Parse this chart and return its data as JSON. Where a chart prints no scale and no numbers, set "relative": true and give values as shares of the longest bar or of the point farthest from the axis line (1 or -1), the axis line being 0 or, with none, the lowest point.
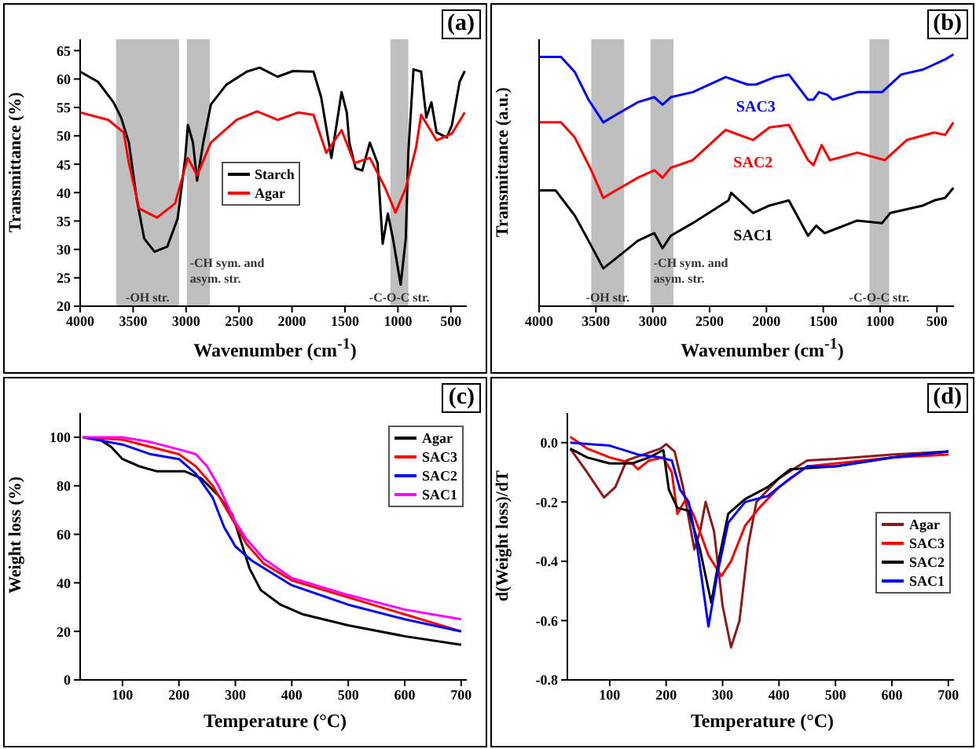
{
  "chart_data": [
    {
      "type": "line",
      "title": "(a)",
      "xlabel": "Wavenumber (cm$^{-1}$)",
      "ylabel": "Transmittance (%)",
      "xlim": [
        4000,
        350
      ],
      "xticks": [
        4000,
        3500,
        3000,
        2500,
        2000,
        1500,
        1000,
        500
      ],
      "ylim": [
        20,
        67
      ],
      "yticks": [
        20,
        25,
        30,
        35,
        40,
        45,
        50,
        55,
        60,
        65
      ],
      "legend": "center",
      "bands": [
        {
          "axis": "x",
          "from": 3661,
          "to": 3066,
          "label": "-OH str.",
          "color": "#bfbfbf"
        },
        {
          "axis": "x",
          "from": 2993,
          "to": 2775,
          "label": "-CH sym. and asym. str.",
          "color": "#bfbfbf"
        },
        {
          "axis": "x",
          "from": 1071,
          "to": 902,
          "label": "-C-O-C str.",
          "color": "#bfbfbf"
        }
      ],
      "series": [
        {
          "name": "Starch",
          "color": "#000000",
          "x": [
            4000,
            3831,
            3685,
            3613,
            3540,
            3467,
            3395,
            3298,
            3177,
            3080,
            3008,
            2983,
            2935,
            2896,
            2838,
            2766,
            2620,
            2427,
            2306,
            2136,
            1991,
            1797,
            1725,
            1628,
            1532,
            1483,
            1459,
            1400,
            1337,
            1265,
            1192,
            1144,
            1095,
            1047,
            974,
            926,
            902,
            853,
            781,
            732,
            684,
            635,
            539,
            490,
            418,
            369
          ],
          "values": [
            61.3,
            59.5,
            55.9,
            53.2,
            48.8,
            39,
            31.9,
            29.6,
            30.5,
            35.4,
            46.1,
            51.9,
            48.8,
            42.1,
            48.8,
            55.5,
            59,
            61.3,
            62,
            60.4,
            61.4,
            61.3,
            56.8,
            46.1,
            57.7,
            54.1,
            48.8,
            44.3,
            43.9,
            48.8,
            45.2,
            31,
            36.3,
            31.9,
            23.8,
            31.9,
            47,
            61.7,
            61.3,
            53.2,
            55.9,
            50.6,
            49.7,
            51.9,
            59.5,
            61.4
          ]
        },
        {
          "name": "Agar",
          "color": "#ff0000",
          "x": [
            4000,
            3734,
            3589,
            3540,
            3443,
            3274,
            3104,
            2983,
            2896,
            2766,
            2523,
            2330,
            2136,
            1943,
            1797,
            1676,
            1532,
            1410,
            1265,
            1120,
            1023,
            926,
            829,
            781,
            635,
            490,
            369
          ],
          "values": [
            54.1,
            52.8,
            50.6,
            45.2,
            37.2,
            35.6,
            38.1,
            46.1,
            43,
            48.8,
            52.8,
            54.3,
            52.8,
            54.1,
            53.7,
            47,
            51,
            45.2,
            46.1,
            40.8,
            36.5,
            40.8,
            47.9,
            53.7,
            49.2,
            50.4,
            54.1
          ]
        }
      ]
    },
    {
      "type": "line",
      "title": "(b)",
      "xlabel": "Wavenumber (cm$^{-1}$)",
      "ylabel": "Transmittance (a.u.)",
      "relative": true,
      "xlim": [
        4000,
        350
      ],
      "xticks": [
        4000,
        3500,
        3000,
        2500,
        2000,
        1500,
        1000,
        500
      ],
      "legend": false,
      "bands": [
        {
          "axis": "x",
          "from": 3541,
          "to": 3252,
          "label": "-OH str.",
          "color": "#bfbfbf"
        },
        {
          "axis": "x",
          "from": 3020,
          "to": 2817,
          "label": "-CH sym. and asym. str.",
          "color": "#bfbfbf"
        },
        {
          "axis": "x",
          "from": 1094,
          "to": 920,
          "label": "-C-O-C str.",
          "color": "#bfbfbf"
        }
      ],
      "series": [
        {
          "name": "SAC3",
          "color": "#0000ff",
          "x": [
            4000,
            3807,
            3686,
            3565,
            3435,
            3324,
            3131,
            2986,
            2914,
            2841,
            2648,
            2358,
            2165,
            2093,
            1924,
            1803,
            1634,
            1586,
            1538,
            1465,
            1417,
            1200,
            983,
            814,
            621,
            428,
            355
          ],
          "values": [
            0.99,
            0.99,
            0.93,
            0.82,
            0.73,
            0.76,
            0.81,
            0.83,
            0.8,
            0.83,
            0.85,
            0.91,
            0.88,
            0.88,
            0.91,
            0.92,
            0.82,
            0.82,
            0.85,
            0.84,
            0.82,
            0.85,
            0.85,
            0.92,
            0.94,
            0.98,
            1.0
          ]
        },
        {
          "name": "SAC2",
          "color": "#ff0000",
          "x": [
            4000,
            3807,
            3686,
            3541,
            3435,
            3324,
            3131,
            2986,
            2914,
            2841,
            2648,
            2358,
            2117,
            1972,
            1803,
            1634,
            1586,
            1514,
            1441,
            1200,
            958,
            765,
            524,
            428,
            355
          ],
          "values": [
            0.73,
            0.73,
            0.67,
            0.54,
            0.43,
            0.46,
            0.51,
            0.54,
            0.51,
            0.55,
            0.58,
            0.7,
            0.66,
            0.71,
            0.72,
            0.58,
            0.56,
            0.64,
            0.58,
            0.61,
            0.58,
            0.66,
            0.69,
            0.68,
            0.73
          ]
        },
        {
          "name": "SAC1",
          "color": "#000000",
          "x": [
            4000,
            3855,
            3686,
            3565,
            3435,
            3324,
            3131,
            2986,
            2914,
            2841,
            2648,
            2334,
            2310,
            2117,
            1972,
            1803,
            1634,
            1562,
            1489,
            1200,
            983,
            910,
            621,
            524,
            428,
            355
          ],
          "values": [
            0.46,
            0.46,
            0.36,
            0.26,
            0.15,
            0.19,
            0.26,
            0.29,
            0.23,
            0.28,
            0.33,
            0.42,
            0.45,
            0.37,
            0.4,
            0.42,
            0.28,
            0.32,
            0.29,
            0.34,
            0.33,
            0.37,
            0.4,
            0.42,
            0.43,
            0.47
          ]
        }
      ]
    },
    {
      "type": "line",
      "title": "(c)",
      "xlabel": "Temperature (°C)",
      "ylabel": "Weight loss (%)",
      "xlim": [
        25,
        710
      ],
      "xticks": [
        100,
        200,
        300,
        400,
        500,
        600,
        700
      ],
      "ylim": [
        0,
        110
      ],
      "yticks": [
        0,
        20,
        40,
        60,
        80,
        100
      ],
      "legend": "top right",
      "series": [
        {
          "name": "Agar",
          "color": "#000000",
          "x": [
            30,
            60,
            80,
            100,
            130,
            160,
            210,
            240,
            270,
            295,
            310,
            325,
            345,
            380,
            420,
            500,
            600,
            700
          ],
          "values": [
            100,
            99,
            96,
            91,
            88,
            86,
            86,
            83,
            76,
            68,
            57,
            46,
            37,
            31,
            27,
            22.5,
            18,
            14.5
          ]
        },
        {
          "name": "SAC3",
          "color": "#ff0000",
          "x": [
            30,
            100,
            150,
            200,
            230,
            260,
            290,
            320,
            350,
            400,
            500,
            600,
            700
          ],
          "values": [
            100,
            99,
            96,
            93,
            88,
            80,
            68,
            56,
            48,
            41,
            34,
            27,
            20
          ]
        },
        {
          "name": "SAC2",
          "color": "#0000ff",
          "x": [
            30,
            100,
            150,
            200,
            230,
            260,
            280,
            300,
            330,
            400,
            500,
            600,
            700
          ],
          "values": [
            100,
            97,
            93,
            91,
            85,
            75,
            63,
            55,
            49,
            39,
            31,
            25,
            20
          ]
        },
        {
          "name": "SAC1",
          "color": "#ff00ff",
          "x": [
            30,
            100,
            150,
            200,
            230,
            250,
            270,
            300,
            320,
            350,
            400,
            500,
            600,
            700
          ],
          "values": [
            100,
            100,
            98,
            95,
            93,
            88,
            80,
            65,
            58,
            50,
            42,
            35,
            29,
            25
          ]
        }
      ]
    },
    {
      "type": "line",
      "title": "(d)",
      "xlabel": "Temperature (°C)",
      "ylabel": "d(Weight loss)/dT",
      "xlim": [
        25,
        710
      ],
      "xticks": [
        100,
        200,
        300,
        400,
        500,
        600,
        700
      ],
      "ylim": [
        -0.8,
        0.1
      ],
      "yticks": [
        -0.8,
        -0.6,
        -0.4,
        -0.2,
        {
          "value": 0,
          "label": "0.0"
        }
      ],
      "legend": "right",
      "series": [
        {
          "name": "Agar",
          "color": "#8b1a1a",
          "x": [
            30,
            60,
            90,
            110,
            130,
            160,
            190,
            200,
            215,
            230,
            250,
            260,
            270,
            285,
            300,
            315,
            330,
            345,
            360,
            400,
            450,
            500,
            600,
            700
          ],
          "values": [
            -0.02,
            -0.1,
            -0.185,
            -0.15,
            -0.06,
            -0.04,
            -0.02,
            -0.005,
            -0.03,
            -0.15,
            -0.36,
            -0.3,
            -0.2,
            -0.3,
            -0.55,
            -0.69,
            -0.6,
            -0.35,
            -0.2,
            -0.12,
            -0.06,
            -0.055,
            -0.04,
            -0.03
          ]
        },
        {
          "name": "SAC3",
          "color": "#ff0000",
          "x": [
            30,
            60,
            100,
            140,
            150,
            170,
            195,
            210,
            220,
            235,
            250,
            275,
            298,
            315,
            340,
            365,
            400,
            450,
            500,
            600,
            700
          ],
          "values": [
            0.02,
            -0.02,
            -0.05,
            -0.07,
            -0.09,
            -0.06,
            -0.05,
            -0.1,
            -0.24,
            -0.19,
            -0.25,
            -0.38,
            -0.45,
            -0.4,
            -0.28,
            -0.22,
            -0.15,
            -0.08,
            -0.07,
            -0.05,
            -0.04
          ]
        },
        {
          "name": "SAC2",
          "color": "#000000",
          "x": [
            30,
            60,
            100,
            140,
            170,
            195,
            205,
            220,
            240,
            260,
            280,
            295,
            310,
            340,
            380,
            420,
            500,
            600,
            700
          ],
          "values": [
            -0.02,
            -0.05,
            -0.07,
            -0.07,
            -0.05,
            -0.025,
            -0.16,
            -0.22,
            -0.23,
            -0.36,
            -0.54,
            -0.38,
            -0.24,
            -0.19,
            -0.15,
            -0.09,
            -0.08,
            -0.05,
            -0.03
          ]
        },
        {
          "name": "SAC1",
          "color": "#0000ff",
          "x": [
            30,
            100,
            150,
            190,
            210,
            225,
            240,
            255,
            275,
            290,
            310,
            340,
            380,
            420,
            450,
            500,
            600,
            700
          ],
          "values": [
            0,
            -0.01,
            -0.04,
            -0.05,
            -0.06,
            -0.16,
            -0.2,
            -0.35,
            -0.62,
            -0.45,
            -0.27,
            -0.2,
            -0.18,
            -0.12,
            -0.08,
            -0.08,
            -0.05,
            -0.03
          ]
        }
      ]
    }
  ]
}
